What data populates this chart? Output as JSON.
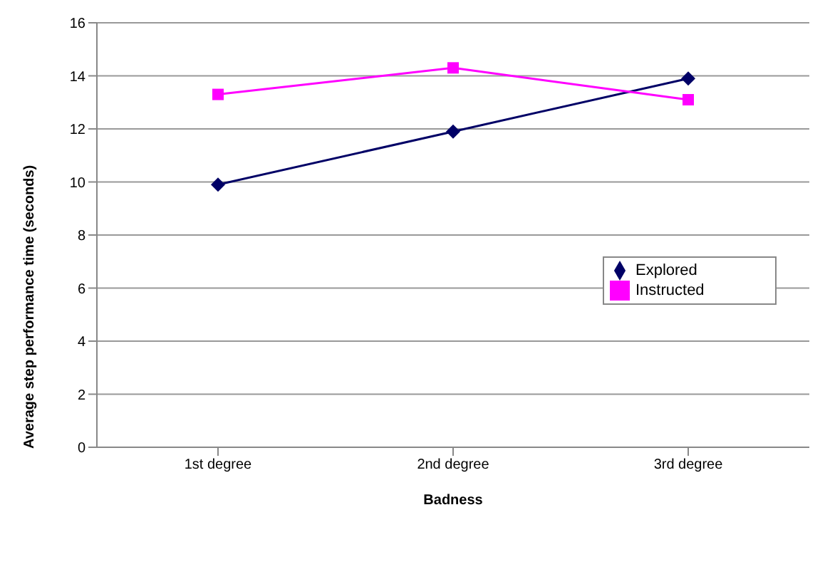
{
  "chart_data": {
    "type": "line",
    "xlabel": "Badness",
    "ylabel": "Average step performance time (seconds)",
    "categories": [
      "1st degree",
      "2nd degree",
      "3rd degree"
    ],
    "series": [
      {
        "name": "Explored",
        "color": "#000066",
        "values": [
          9.9,
          11.9,
          13.9
        ],
        "marker": "diamond"
      },
      {
        "name": "Instructed",
        "color": "#ff00ff",
        "values": [
          13.3,
          14.3,
          13.1
        ],
        "marker": "square"
      }
    ],
    "ylim": [
      0,
      16
    ],
    "yticks": [
      0,
      2,
      4,
      6,
      8,
      10,
      12,
      14,
      16
    ],
    "grid": "y",
    "legend": "right"
  }
}
